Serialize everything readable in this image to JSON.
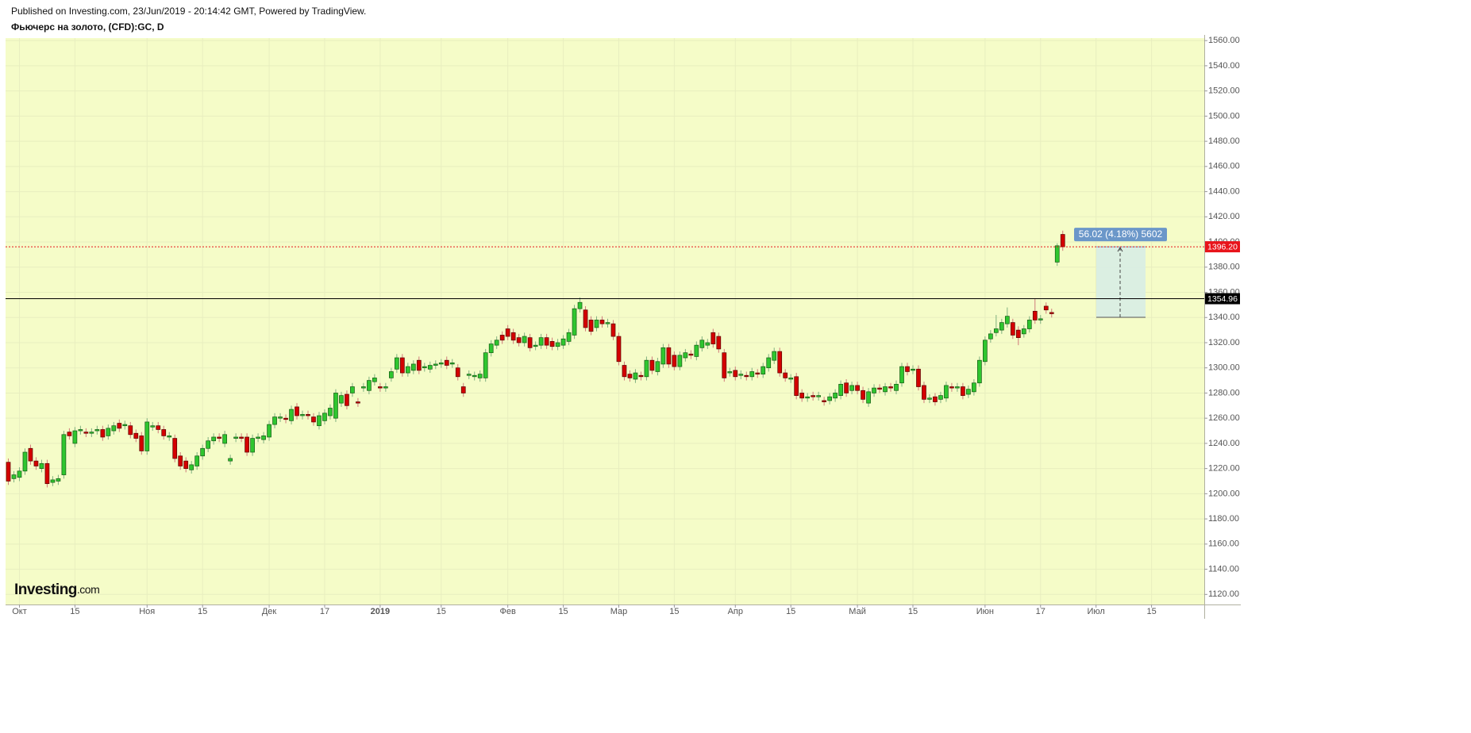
{
  "chart_data": {
    "type": "candlestick",
    "source": "Published on Investing.com, 23/Jun/2019 - 20:14:42 GMT, Powered by TradingView.",
    "title": "Фьючерс на золото, (CFD):GC, D",
    "logo": {
      "name": "Investing",
      "suffix": ".com"
    },
    "up_color": "#2fc62f",
    "down_color": "#d40000",
    "grid": true,
    "ylim": [
      1112,
      1562
    ],
    "yticks": [
      {
        "value": 1120,
        "label": "1120.00"
      },
      {
        "value": 1140,
        "label": "1140.00"
      },
      {
        "value": 1160,
        "label": "1160.00"
      },
      {
        "value": 1180,
        "label": "1180.00"
      },
      {
        "value": 1200,
        "label": "1200.00"
      },
      {
        "value": 1220,
        "label": "1220.00"
      },
      {
        "value": 1240,
        "label": "1240.00"
      },
      {
        "value": 1260,
        "label": "1260.00"
      },
      {
        "value": 1280,
        "label": "1280.00"
      },
      {
        "value": 1300,
        "label": "1300.00"
      },
      {
        "value": 1320,
        "label": "1320.00"
      },
      {
        "value": 1340,
        "label": "1340.00"
      },
      {
        "value": 1360,
        "label": "1360.00"
      },
      {
        "value": 1380,
        "label": "1380.00"
      },
      {
        "value": 1400,
        "label": "1400.00"
      },
      {
        "value": 1420,
        "label": "1420.00"
      },
      {
        "value": 1440,
        "label": "1440.00"
      },
      {
        "value": 1460,
        "label": "1460.00"
      },
      {
        "value": 1480,
        "label": "1480.00"
      },
      {
        "value": 1500,
        "label": "1500.00"
      },
      {
        "value": 1520,
        "label": "1520.00"
      },
      {
        "value": 1540,
        "label": "1540.00"
      },
      {
        "value": 1560,
        "label": "1560.00"
      }
    ],
    "hlines": [
      {
        "value": 1396.2,
        "label": "1396.20",
        "color": "#e8141b",
        "style": "dotted"
      },
      {
        "value": 1354.96,
        "label": "1354.96",
        "color": "#000000",
        "style": "solid"
      }
    ],
    "measure": {
      "from": 1340.18,
      "to": 1396.2,
      "label": "56.02 (4.18%) 5602"
    },
    "categories": [
      null,
      null,
      "Окт",
      null,
      null,
      null,
      null,
      null,
      null,
      null,
      null,
      null,
      "15",
      null,
      null,
      null,
      null,
      null,
      null,
      null,
      null,
      null,
      null,
      null,
      null,
      "Ноя",
      null,
      null,
      null,
      null,
      null,
      null,
      null,
      null,
      null,
      "15",
      null,
      null,
      null,
      null,
      null,
      null,
      null,
      null,
      null,
      null,
      null,
      "Дек",
      null,
      null,
      null,
      null,
      null,
      null,
      null,
      null,
      null,
      "17",
      null,
      null,
      null,
      null,
      null,
      null,
      null,
      null,
      null,
      "2019",
      null,
      null,
      null,
      null,
      null,
      null,
      null,
      null,
      null,
      null,
      "15",
      null,
      null,
      null,
      null,
      null,
      null,
      null,
      null,
      null,
      null,
      null,
      "Фев",
      null,
      null,
      null,
      null,
      null,
      null,
      null,
      null,
      null,
      "15",
      null,
      null,
      null,
      null,
      null,
      null,
      null,
      null,
      null,
      "Мар",
      null,
      null,
      null,
      null,
      null,
      null,
      null,
      null,
      null,
      "15",
      null,
      null,
      null,
      null,
      null,
      null,
      null,
      null,
      null,
      null,
      "Апр",
      null,
      null,
      null,
      null,
      null,
      null,
      null,
      null,
      null,
      "15",
      null,
      null,
      null,
      null,
      null,
      null,
      null,
      null,
      null,
      null,
      null,
      "Май",
      null,
      null,
      null,
      null,
      null,
      null,
      null,
      null,
      null,
      "15",
      null,
      null,
      null,
      null,
      null,
      null,
      null,
      null,
      null,
      null,
      null,
      null,
      "Июн",
      null,
      null,
      null,
      null,
      null,
      null,
      null,
      null,
      null,
      "17",
      null,
      null,
      null,
      null,
      null,
      null,
      null,
      null,
      null,
      "Июл",
      null,
      null,
      null,
      null,
      null,
      null,
      null,
      null,
      null,
      "15",
      null,
      null,
      null,
      null,
      null,
      null,
      null,
      null,
      null
    ],
    "open": [
      1225,
      1212,
      1213,
      1218,
      1236,
      1226,
      1220,
      1224,
      1209,
      1210,
      1215,
      1249,
      1240,
      1250,
      1249,
      1248,
      1250,
      1251,
      1246,
      1250,
      1256,
      1254,
      1254,
      1248,
      1246,
      1234,
      1253,
      1254,
      1251,
      1245,
      1244,
      1230,
      1226,
      1219,
      1222,
      1230,
      1236,
      1242,
      1245,
      1240,
      1226,
      1244,
      1245,
      1245,
      1233,
      1244,
      1243,
      1245,
      1255,
      1260,
      1260,
      1258,
      1269,
      1262,
      1263,
      1261,
      1254,
      1258,
      1262,
      1260,
      1272,
      1279,
      1280,
      1273,
      1284,
      1282,
      1289,
      1285,
      1284,
      1292,
      1299,
      1308,
      1296,
      1298,
      1306,
      1300,
      1299,
      1302,
      1303,
      1306,
      1303,
      1300,
      1285,
      1294,
      1293,
      1292,
      1292,
      1312,
      1318,
      1326,
      1331,
      1328,
      1324,
      1320,
      1324,
      1317,
      1318,
      1324,
      1321,
      1317,
      1318,
      1321,
      1326,
      1347,
      1346,
      1338,
      1332,
      1338,
      1335,
      1335,
      1325,
      1302,
      1295,
      1291,
      1294,
      1293,
      1306,
      1297,
      1303,
      1316,
      1310,
      1301,
      1308,
      1311,
      1309,
      1316,
      1318,
      1328,
      1325,
      1312,
      1296,
      1298,
      1294,
      1294,
      1293,
      1296,
      1295,
      1300,
      1306,
      1313,
      1296,
      1291,
      1293,
      1280,
      1276,
      1278,
      1277,
      1274,
      1274,
      1276,
      1278,
      1288,
      1282,
      1286,
      1282,
      1272,
      1280,
      1284,
      1281,
      1285,
      1282,
      1288,
      1301,
      1298,
      1299,
      1286,
      1275,
      1277,
      1275,
      1276,
      1285,
      1284,
      1285,
      1279,
      1281,
      1288,
      1305,
      1323,
      1328,
      1330,
      1335,
      1336,
      1330,
      1327,
      1331,
      1345,
      1338,
      1349,
      1344,
      1384,
      1406,
      null,
      null,
      null,
      null,
      null,
      null,
      null,
      null,
      null,
      null,
      null,
      null,
      null,
      null,
      null,
      null,
      null,
      null,
      null,
      null,
      null,
      null,
      null,
      null,
      null
    ],
    "high": [
      1228,
      1218,
      1221,
      1236,
      1239,
      1229,
      1227,
      1227,
      1214,
      1215,
      1250,
      1252,
      1253,
      1254,
      1252,
      1252,
      1254,
      1254,
      1255,
      1257,
      1259,
      1258,
      1257,
      1251,
      1249,
      1260,
      1257,
      1257,
      1254,
      1249,
      1247,
      1233,
      1229,
      1226,
      1233,
      1239,
      1245,
      1248,
      1248,
      1250,
      1231,
      1248,
      1248,
      1248,
      1247,
      1248,
      1249,
      1258,
      1264,
      1264,
      1263,
      1270,
      1272,
      1266,
      1266,
      1264,
      1265,
      1267,
      1271,
      1283,
      1281,
      1282,
      1288,
      1276,
      1288,
      1293,
      1295,
      1288,
      1288,
      1300,
      1311,
      1311,
      1304,
      1306,
      1309,
      1304,
      1305,
      1306,
      1307,
      1309,
      1307,
      1303,
      1288,
      1298,
      1297,
      1298,
      1315,
      1322,
      1325,
      1329,
      1334,
      1331,
      1327,
      1328,
      1327,
      1321,
      1327,
      1327,
      1324,
      1323,
      1326,
      1331,
      1350,
      1356,
      1349,
      1341,
      1341,
      1341,
      1339,
      1338,
      1328,
      1305,
      1298,
      1299,
      1297,
      1309,
      1309,
      1308,
      1319,
      1319,
      1313,
      1313,
      1315,
      1314,
      1321,
      1325,
      1323,
      1331,
      1328,
      1315,
      1300,
      1301,
      1298,
      1297,
      1300,
      1299,
      1304,
      1311,
      1316,
      1316,
      1299,
      1295,
      1296,
      1283,
      1280,
      1281,
      1281,
      1277,
      1280,
      1283,
      1290,
      1291,
      1289,
      1289,
      1285,
      1284,
      1287,
      1287,
      1288,
      1288,
      1290,
      1304,
      1304,
      1302,
      1302,
      1289,
      1279,
      1280,
      1281,
      1289,
      1288,
      1288,
      1288,
      1286,
      1291,
      1309,
      1325,
      1330,
      1342,
      1339,
      1348,
      1339,
      1333,
      1334,
      1341,
      1355,
      1342,
      1352,
      1347,
      1399,
      1409,
      null,
      null,
      null,
      null,
      null,
      null,
      null,
      null,
      null,
      null,
      null,
      null,
      null,
      null,
      null,
      null,
      null,
      null,
      null,
      null,
      null,
      null,
      null,
      null,
      null
    ],
    "low": [
      1207,
      1209,
      1210,
      1215,
      1223,
      1219,
      1217,
      1205,
      1206,
      1207,
      1212,
      1243,
      1237,
      1247,
      1245,
      1245,
      1247,
      1242,
      1243,
      1247,
      1249,
      1251,
      1244,
      1241,
      1231,
      1231,
      1250,
      1248,
      1243,
      1242,
      1225,
      1219,
      1217,
      1216,
      1219,
      1227,
      1233,
      1239,
      1241,
      1237,
      1223,
      1241,
      1241,
      1230,
      1230,
      1241,
      1240,
      1242,
      1252,
      1257,
      1256,
      1255,
      1259,
      1259,
      1259,
      1254,
      1251,
      1255,
      1259,
      1257,
      1269,
      1267,
      1277,
      1269,
      1281,
      1279,
      1286,
      1281,
      1281,
      1289,
      1296,
      1293,
      1293,
      1295,
      1295,
      1297,
      1296,
      1299,
      1300,
      1299,
      1300,
      1290,
      1277,
      1291,
      1290,
      1289,
      1289,
      1309,
      1315,
      1319,
      1322,
      1319,
      1317,
      1317,
      1313,
      1314,
      1315,
      1315,
      1314,
      1314,
      1315,
      1318,
      1323,
      1344,
      1329,
      1326,
      1329,
      1332,
      1332,
      1322,
      1302,
      1290,
      1289,
      1288,
      1290,
      1290,
      1295,
      1294,
      1300,
      1300,
      1298,
      1298,
      1305,
      1307,
      1306,
      1313,
      1315,
      1316,
      1312,
      1289,
      1293,
      1290,
      1291,
      1290,
      1290,
      1292,
      1292,
      1297,
      1303,
      1293,
      1289,
      1288,
      1275,
      1273,
      1273,
      1274,
      1274,
      1270,
      1271,
      1273,
      1275,
      1277,
      1279,
      1279,
      1272,
      1269,
      1277,
      1280,
      1278,
      1281,
      1279,
      1285,
      1294,
      1295,
      1282,
      1272,
      1272,
      1270,
      1272,
      1273,
      1281,
      1281,
      1275,
      1276,
      1278,
      1285,
      1302,
      1320,
      1325,
      1327,
      1332,
      1323,
      1318,
      1324,
      1328,
      1335,
      1335,
      1343,
      1340,
      1381,
      1393,
      null,
      null,
      null,
      null,
      null,
      null,
      null,
      null,
      null,
      null,
      null,
      null,
      null,
      null,
      null,
      null,
      null,
      null,
      null,
      null,
      null,
      null,
      null,
      null,
      null
    ],
    "close": [
      1210,
      1215,
      1218,
      1233,
      1226,
      1222,
      1224,
      1208,
      1211,
      1212,
      1247,
      1246,
      1250,
      1251,
      1248,
      1249,
      1251,
      1245,
      1252,
      1254,
      1252,
      1255,
      1247,
      1244,
      1234,
      1257,
      1254,
      1251,
      1246,
      1246,
      1228,
      1222,
      1220,
      1223,
      1230,
      1236,
      1242,
      1245,
      1244,
      1247,
      1228,
      1245,
      1244,
      1233,
      1244,
      1245,
      1246,
      1255,
      1261,
      1261,
      1259,
      1267,
      1262,
      1263,
      1262,
      1257,
      1262,
      1264,
      1268,
      1280,
      1278,
      1270,
      1285,
      1272,
      1285,
      1290,
      1292,
      1284,
      1285,
      1297,
      1308,
      1296,
      1301,
      1303,
      1298,
      1301,
      1302,
      1303,
      1304,
      1302,
      1304,
      1293,
      1280,
      1295,
      1294,
      1295,
      1312,
      1319,
      1322,
      1322,
      1325,
      1322,
      1320,
      1325,
      1316,
      1318,
      1324,
      1318,
      1317,
      1320,
      1323,
      1328,
      1347,
      1352,
      1332,
      1329,
      1338,
      1335,
      1336,
      1325,
      1305,
      1293,
      1292,
      1296,
      1293,
      1306,
      1298,
      1305,
      1316,
      1303,
      1301,
      1310,
      1312,
      1310,
      1318,
      1322,
      1320,
      1319,
      1315,
      1292,
      1297,
      1293,
      1295,
      1293,
      1297,
      1295,
      1301,
      1308,
      1313,
      1296,
      1292,
      1292,
      1278,
      1276,
      1277,
      1277,
      1278,
      1273,
      1277,
      1280,
      1287,
      1280,
      1286,
      1282,
      1275,
      1281,
      1284,
      1283,
      1285,
      1284,
      1287,
      1301,
      1297,
      1299,
      1285,
      1275,
      1276,
      1273,
      1278,
      1286,
      1284,
      1285,
      1278,
      1283,
      1288,
      1306,
      1322,
      1327,
      1331,
      1336,
      1341,
      1326,
      1324,
      1331,
      1338,
      1338,
      1339,
      1346,
      1343,
      1397,
      1396.2,
      null,
      null,
      null,
      null,
      null,
      null,
      null,
      null,
      null,
      null,
      null,
      null,
      null,
      null,
      null,
      null,
      null,
      null,
      null,
      null,
      null,
      null,
      null,
      null,
      null
    ]
  }
}
